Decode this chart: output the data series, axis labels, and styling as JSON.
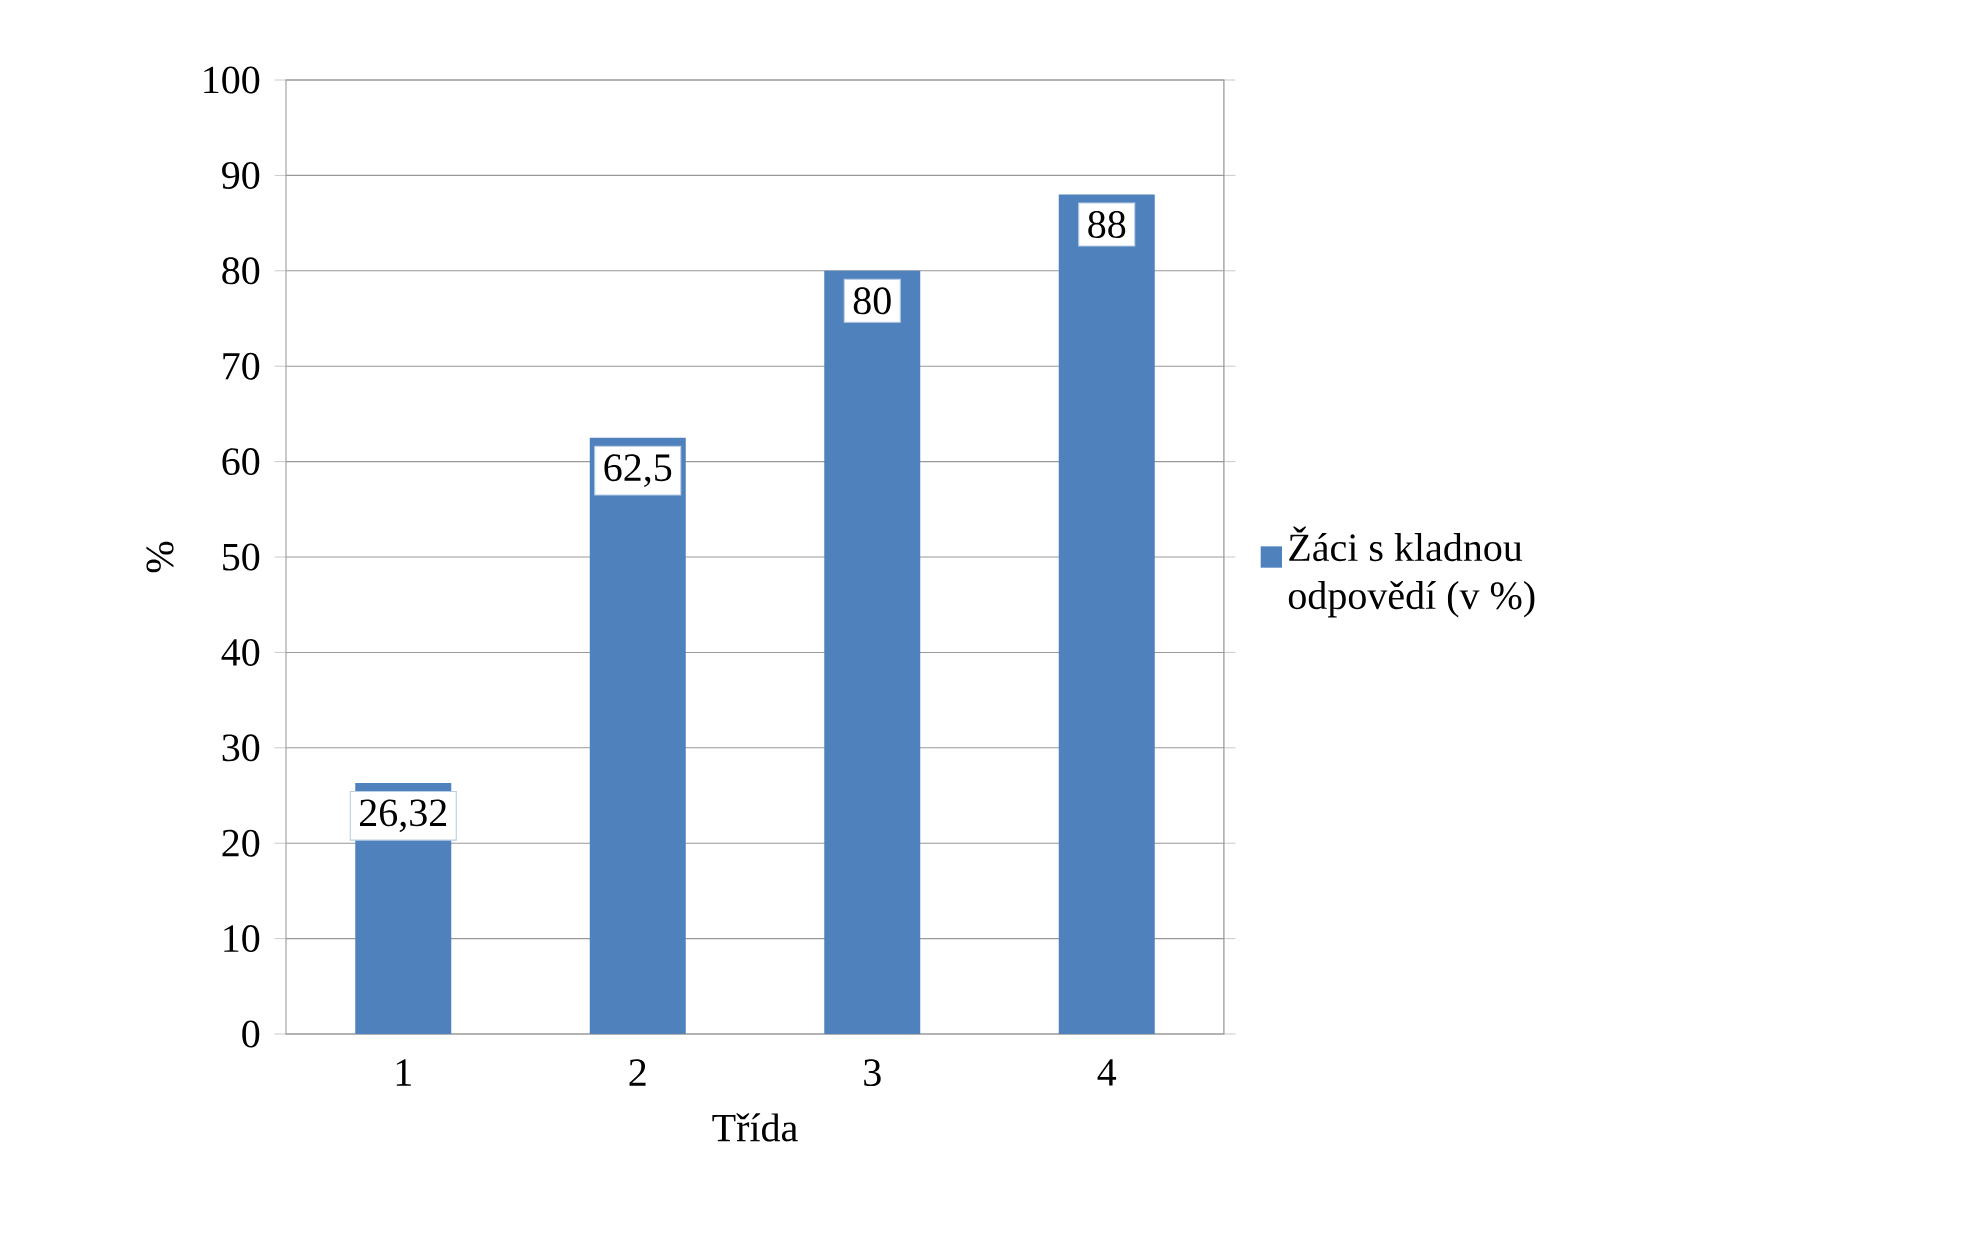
{
  "chart_data": {
    "type": "bar",
    "xlabel": "Třída",
    "ylabel": "%",
    "categories": [
      "1",
      "2",
      "3",
      "4"
    ],
    "series": [
      {
        "name": "Žáci s kladnou odpovědí (v %)",
        "color": "#4f81bd",
        "values": [
          26.32,
          62.5,
          80,
          88
        ],
        "value_labels": [
          "26,32",
          "62,5",
          "80",
          "88"
        ]
      }
    ],
    "ylim": [
      0,
      100
    ],
    "yticks": [
      0,
      10,
      20,
      30,
      40,
      50,
      60,
      70,
      80,
      90,
      100
    ],
    "grid": "y",
    "legend": "right"
  }
}
